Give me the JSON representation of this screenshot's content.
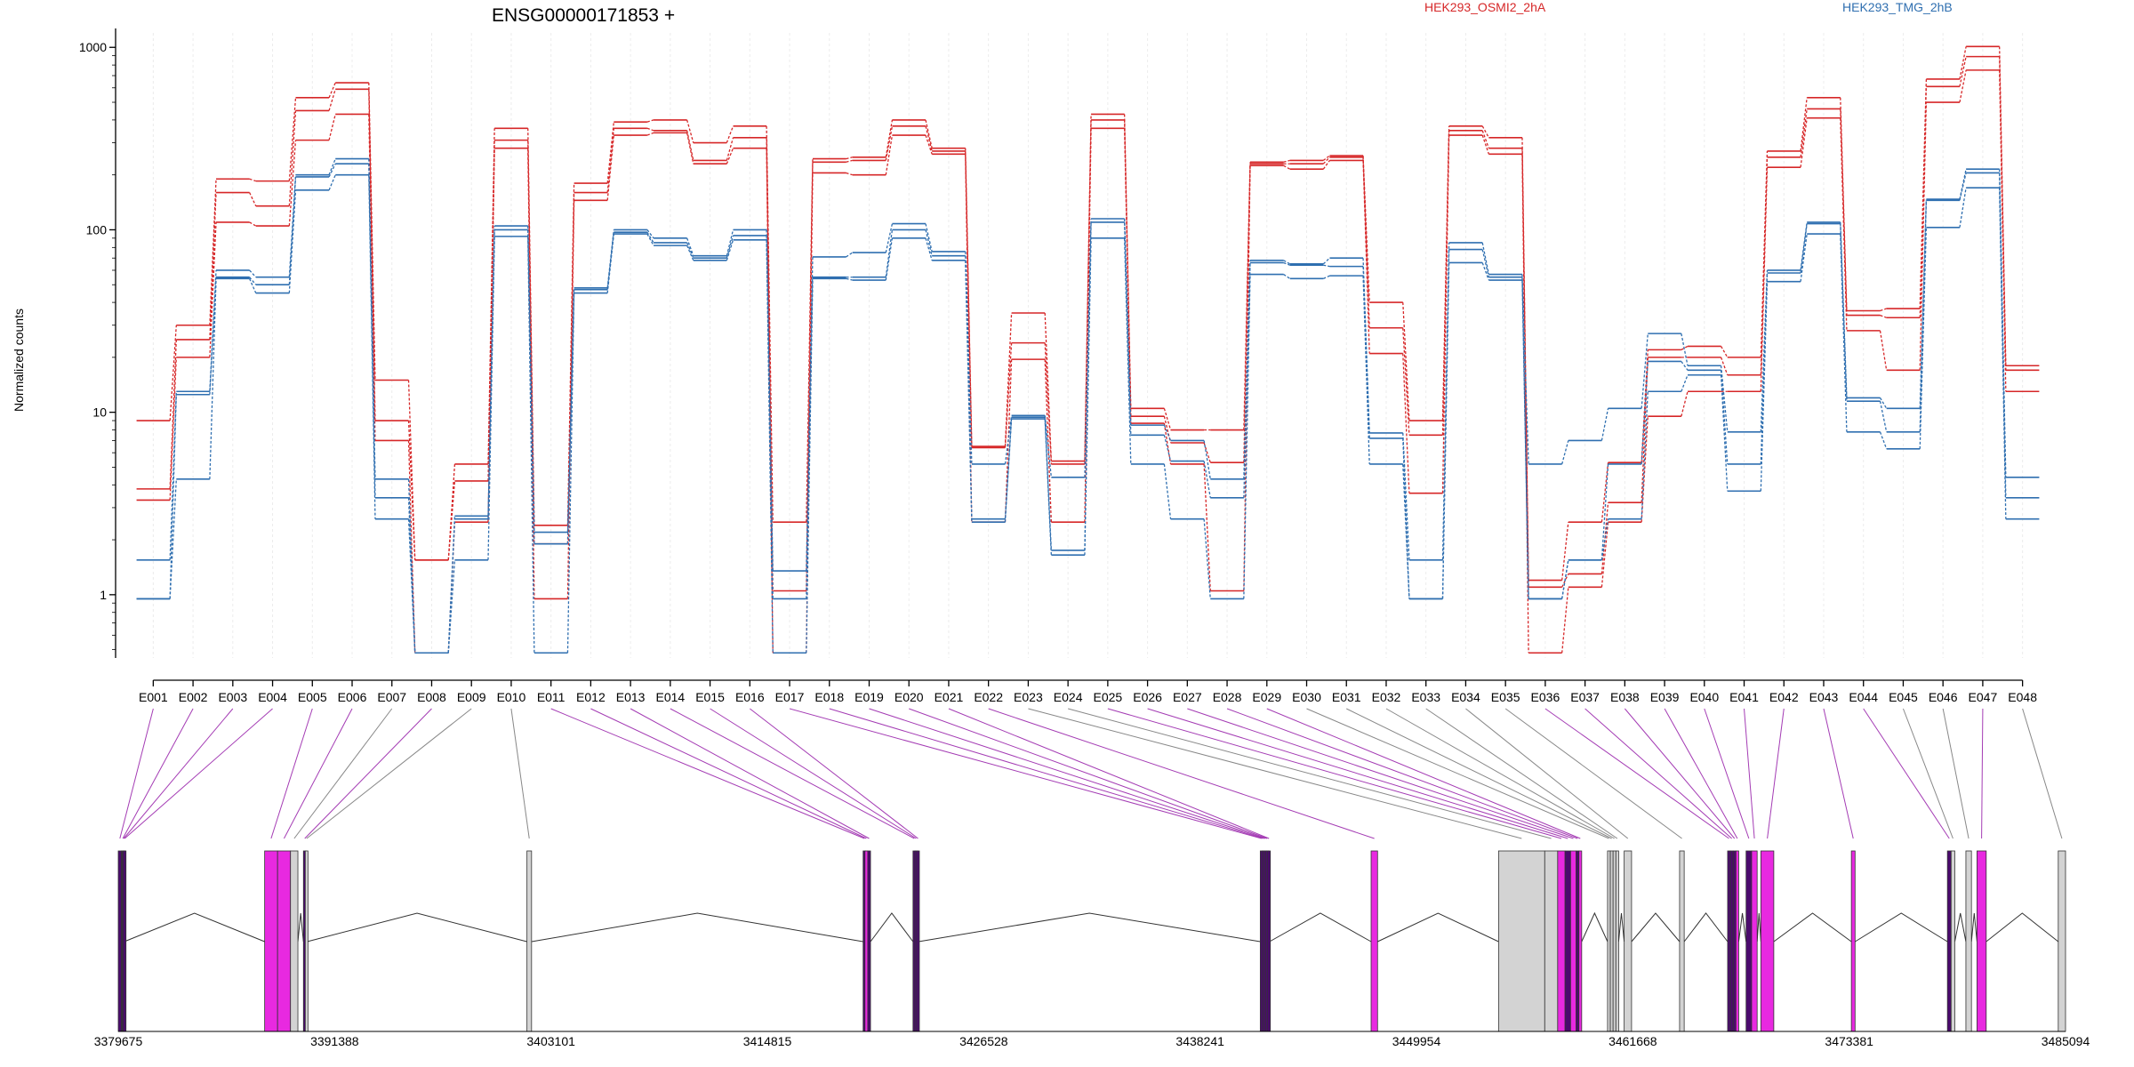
{
  "chart_data": {
    "type": "line",
    "title": "ENSG00000171853 +",
    "ylabel": "Normalized counts",
    "xlabel": "",
    "yscale": "log",
    "ylim": [
      0.45,
      1200
    ],
    "yticks": [
      1,
      10,
      100,
      1000
    ],
    "yticklabels": [
      "1",
      "10",
      "100",
      "1000"
    ],
    "grid": "vertical",
    "legend_placement": "top-right",
    "categories": [
      "E001",
      "E002",
      "E003",
      "E004",
      "E005",
      "E006",
      "E007",
      "E008",
      "E009",
      "E010",
      "E011",
      "E012",
      "E013",
      "E014",
      "E015",
      "E016",
      "E017",
      "E018",
      "E019",
      "E020",
      "E021",
      "E022",
      "E023",
      "E024",
      "E025",
      "E026",
      "E027",
      "E028",
      "E029",
      "E030",
      "E031",
      "E032",
      "E033",
      "E034",
      "E035",
      "E036",
      "E037",
      "E038",
      "E039",
      "E040",
      "E041",
      "E042",
      "E043",
      "E044",
      "E045",
      "E046",
      "E047",
      "E048"
    ],
    "series": [
      {
        "name": "HEK293_OSMI2_2hA",
        "color": "#d62728",
        "group": "HEK293_OSMI2_2hA",
        "values": [
          9,
          30,
          190,
          185,
          530,
          640,
          15,
          1.55,
          5.2,
          360,
          2.4,
          180,
          390,
          400,
          300,
          370,
          2.5,
          245,
          250,
          400,
          280,
          6.5,
          35,
          5.4,
          430,
          10.5,
          8,
          8,
          235,
          240,
          255,
          40,
          9,
          370,
          320,
          1.2,
          2.5,
          5.3,
          22,
          23,
          20,
          270,
          530,
          36,
          37,
          670,
          1010,
          18
        ]
      },
      {
        "name": "",
        "color": "#d62728",
        "group": "HEK293_OSMI2_2hA",
        "values": [
          3.8,
          25,
          160,
          135,
          450,
          590,
          9,
          1.55,
          4.2,
          310,
          1.9,
          160,
          360,
          350,
          240,
          320,
          1.05,
          235,
          240,
          370,
          270,
          6.4,
          24,
          5.2,
          400,
          9.5,
          6.8,
          5.3,
          230,
          230,
          250,
          29,
          7.5,
          350,
          280,
          1.1,
          1.3,
          3.2,
          20,
          20,
          16,
          250,
          460,
          34,
          33,
          610,
          890,
          17
        ]
      },
      {
        "name": "",
        "color": "#d62728",
        "group": "HEK293_OSMI2_2hA",
        "values": [
          3.3,
          20,
          110,
          105,
          310,
          430,
          7,
          0.48,
          2.5,
          280,
          0.95,
          145,
          330,
          340,
          230,
          280,
          0.48,
          205,
          200,
          330,
          260,
          2.5,
          19.5,
          2.5,
          360,
          8.7,
          5.2,
          1.05,
          225,
          215,
          240,
          21,
          3.6,
          330,
          260,
          0.48,
          1.1,
          2.5,
          9.5,
          13,
          13,
          220,
          410,
          28,
          17,
          500,
          750,
          13
        ]
      },
      {
        "name": "HEK293_TMG_2hB",
        "color": "#2f6fb0",
        "group": "HEK293_TMG_2hB",
        "values": [
          1.55,
          13,
          60,
          55,
          200,
          245,
          4.3,
          0.48,
          2.7,
          105,
          2.2,
          48,
          100,
          90,
          72,
          100,
          1.35,
          71,
          75,
          108,
          76,
          5.2,
          9.6,
          4.4,
          115,
          8.5,
          7,
          4.3,
          68,
          65,
          70,
          7.7,
          1.55,
          85,
          57,
          5.2,
          7,
          10.5,
          27,
          18,
          7.8,
          60,
          110,
          12,
          10.5,
          147,
          215,
          4.4
        ]
      },
      {
        "name": "",
        "color": "#2f6fb0",
        "group": "HEK293_TMG_2hB",
        "values": [
          0.95,
          12.5,
          55,
          50,
          195,
          230,
          3.4,
          0.48,
          2.6,
          100,
          1.9,
          47,
          97,
          85,
          70,
          93,
          0.95,
          55,
          55,
          100,
          72,
          2.6,
          9.4,
          1.75,
          110,
          7.5,
          5.4,
          3.4,
          66,
          64,
          63,
          7.2,
          0.95,
          78,
          55,
          0.95,
          1.55,
          5.2,
          19,
          17,
          5.2,
          58,
          108,
          11.5,
          7.8,
          145,
          205,
          3.4
        ]
      },
      {
        "name": "",
        "color": "#2f6fb0",
        "group": "HEK293_TMG_2hB",
        "values": [
          0.95,
          4.3,
          54,
          45,
          165,
          200,
          2.6,
          0.48,
          1.55,
          92,
          0.48,
          45,
          95,
          82,
          68,
          88,
          0.48,
          54,
          53,
          90,
          68,
          2.5,
          9.2,
          1.65,
          90,
          5.2,
          2.6,
          0.95,
          57,
          54,
          56,
          5.2,
          0.95,
          66,
          53,
          0.95,
          1.55,
          2.6,
          13,
          16,
          3.7,
          52,
          95,
          7.8,
          6.3,
          103,
          170,
          2.6
        ]
      }
    ],
    "legend": [
      {
        "label": "HEK293_OSMI2_2hA",
        "color": "#d62728"
      },
      {
        "label": "HEK293_TMG_2hB",
        "color": "#2f6fb0"
      }
    ],
    "gene_model": {
      "coordinate_ticks": [
        3379675,
        3391388,
        3403101,
        3414815,
        3426528,
        3438241,
        3449954,
        3461668,
        3473381,
        3485094
      ],
      "coordinate_ticklabels": [
        "3379675",
        "3391388",
        "3403101",
        "3414815",
        "3426528",
        "3438241",
        "3449954",
        "3461668",
        "3473381",
        "3485094"
      ],
      "range": [
        3379675,
        3485094
      ],
      "exon_colors": {
        "significant": "#e829e0",
        "not_significant": "#d3d3d3",
        "overlap": "#4b0a6e"
      },
      "exons": [
        {
          "id": "E001",
          "start": 3379675,
          "end": 3379850,
          "status": "overlap"
        },
        {
          "id": "E002",
          "start": 3379850,
          "end": 3379900,
          "status": "overlap"
        },
        {
          "id": "E003",
          "start": 3379900,
          "end": 3379950,
          "status": "overlap"
        },
        {
          "id": "E004",
          "start": 3379950,
          "end": 3380000,
          "status": "overlap"
        },
        {
          "id": "E005",
          "start": 3387600,
          "end": 3388300,
          "status": "significant"
        },
        {
          "id": "E006",
          "start": 3388300,
          "end": 3389000,
          "status": "significant"
        },
        {
          "id": "E007",
          "start": 3389000,
          "end": 3389400,
          "status": "not_significant"
        },
        {
          "id": "E008",
          "start": 3389700,
          "end": 3389800,
          "status": "overlap"
        },
        {
          "id": "E009",
          "start": 3389800,
          "end": 3389900,
          "status": "not_significant"
        },
        {
          "id": "E010",
          "start": 3401800,
          "end": 3402050,
          "status": "not_significant"
        },
        {
          "id": "E011",
          "start": 3420000,
          "end": 3420100,
          "status": "overlap"
        },
        {
          "id": "E012",
          "start": 3420100,
          "end": 3420250,
          "status": "significant"
        },
        {
          "id": "E013",
          "start": 3420250,
          "end": 3420400,
          "status": "overlap"
        },
        {
          "id": "E014",
          "start": 3422700,
          "end": 3422800,
          "status": "overlap"
        },
        {
          "id": "E015",
          "start": 3422800,
          "end": 3422900,
          "status": "overlap"
        },
        {
          "id": "E016",
          "start": 3422900,
          "end": 3423000,
          "status": "overlap"
        },
        {
          "id": "E017",
          "start": 3441500,
          "end": 3441600,
          "status": "overlap"
        },
        {
          "id": "E018",
          "start": 3441600,
          "end": 3441700,
          "status": "overlap"
        },
        {
          "id": "E019",
          "start": 3441700,
          "end": 3441800,
          "status": "overlap"
        },
        {
          "id": "E020",
          "start": 3441800,
          "end": 3441900,
          "status": "overlap"
        },
        {
          "id": "E021",
          "start": 3441900,
          "end": 3442000,
          "status": "overlap"
        },
        {
          "id": "E022",
          "start": 3447500,
          "end": 3447850,
          "status": "significant"
        },
        {
          "id": "E023",
          "start": 3454400,
          "end": 3456900,
          "status": "not_significant"
        },
        {
          "id": "E024",
          "start": 3456900,
          "end": 3457600,
          "status": "not_significant"
        },
        {
          "id": "E025",
          "start": 3457600,
          "end": 3458000,
          "status": "significant"
        },
        {
          "id": "E026",
          "start": 3458000,
          "end": 3458300,
          "status": "overlap"
        },
        {
          "id": "E027",
          "start": 3458300,
          "end": 3458600,
          "status": "significant"
        },
        {
          "id": "E028",
          "start": 3458600,
          "end": 3458750,
          "status": "overlap"
        },
        {
          "id": "E029",
          "start": 3458750,
          "end": 3458900,
          "status": "significant"
        },
        {
          "id": "E030",
          "start": 3460300,
          "end": 3460450,
          "status": "not_significant"
        },
        {
          "id": "E031",
          "start": 3460450,
          "end": 3460600,
          "status": "not_significant"
        },
        {
          "id": "E032",
          "start": 3460600,
          "end": 3460750,
          "status": "not_significant"
        },
        {
          "id": "E033",
          "start": 3460750,
          "end": 3460900,
          "status": "not_significant"
        },
        {
          "id": "E034",
          "start": 3461200,
          "end": 3461600,
          "status": "not_significant"
        },
        {
          "id": "E035",
          "start": 3464200,
          "end": 3464450,
          "status": "not_significant"
        },
        {
          "id": "E036",
          "start": 3466800,
          "end": 3466950,
          "status": "overlap"
        },
        {
          "id": "E037",
          "start": 3466950,
          "end": 3467100,
          "status": "overlap"
        },
        {
          "id": "E038",
          "start": 3467100,
          "end": 3467250,
          "status": "overlap"
        },
        {
          "id": "E039",
          "start": 3467250,
          "end": 3467400,
          "status": "significant"
        },
        {
          "id": "E040",
          "start": 3467800,
          "end": 3468100,
          "status": "overlap"
        },
        {
          "id": "E041",
          "start": 3468100,
          "end": 3468400,
          "status": "significant"
        },
        {
          "id": "E042",
          "start": 3468600,
          "end": 3469300,
          "status": "significant"
        },
        {
          "id": "E043",
          "start": 3473500,
          "end": 3473700,
          "status": "significant"
        },
        {
          "id": "E044",
          "start": 3478700,
          "end": 3478900,
          "status": "overlap"
        },
        {
          "id": "E045",
          "start": 3478900,
          "end": 3479100,
          "status": "not_significant"
        },
        {
          "id": "E046",
          "start": 3479700,
          "end": 3480000,
          "status": "not_significant"
        },
        {
          "id": "E047",
          "start": 3480300,
          "end": 3480800,
          "status": "significant"
        },
        {
          "id": "E048",
          "start": 3484700,
          "end": 3485094,
          "status": "not_significant"
        }
      ]
    }
  }
}
